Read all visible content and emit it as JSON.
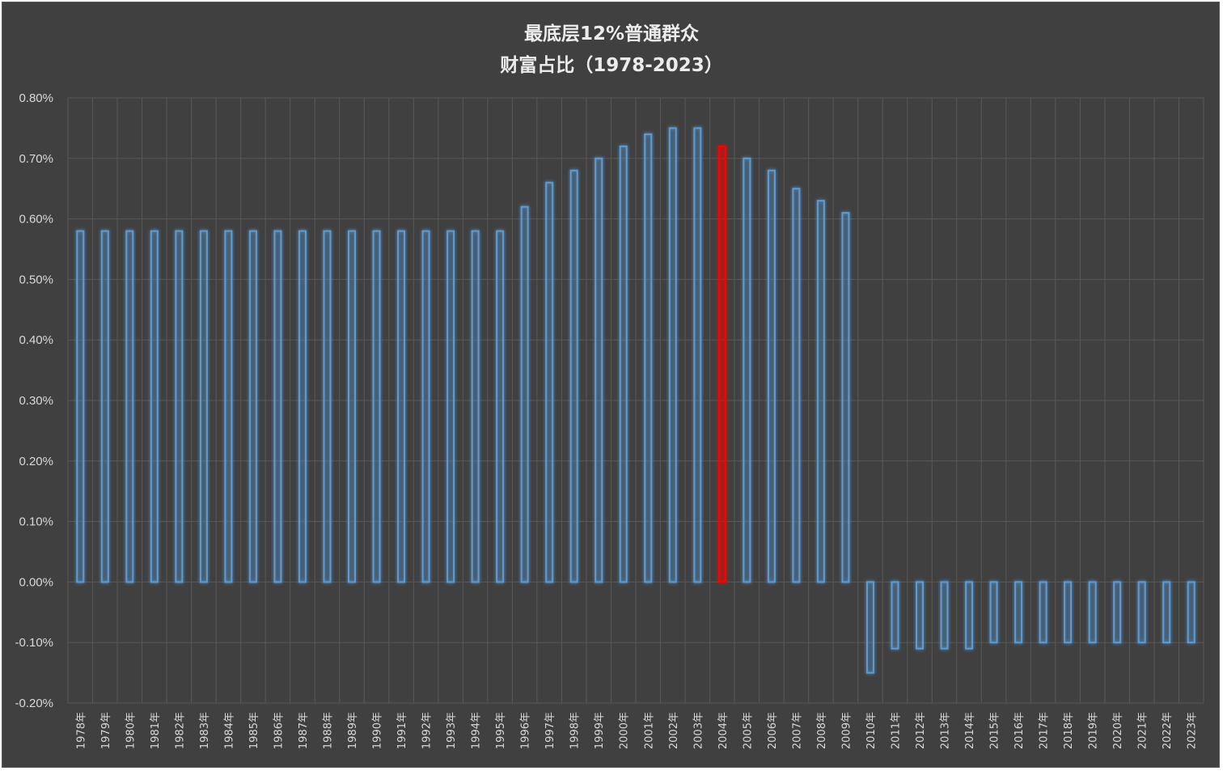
{
  "chart_data": {
    "type": "bar",
    "title": "最底层12%普通群众",
    "subtitle": "财富占比（1978-2023）",
    "categories": [
      "1978年",
      "1979年",
      "1980年",
      "1981年",
      "1982年",
      "1983年",
      "1984年",
      "1985年",
      "1986年",
      "1987年",
      "1988年",
      "1989年",
      "1990年",
      "1991年",
      "1992年",
      "1993年",
      "1994年",
      "1995年",
      "1996年",
      "1997年",
      "1998年",
      "1999年",
      "2000年",
      "2001年",
      "2002年",
      "2003年",
      "2004年",
      "2005年",
      "2006年",
      "2007年",
      "2008年",
      "2009年",
      "2010年",
      "2011年",
      "2012年",
      "2013年",
      "2014年",
      "2015年",
      "2016年",
      "2017年",
      "2018年",
      "2019年",
      "2020年",
      "2021年",
      "2022年",
      "2023年"
    ],
    "values": [
      0.58,
      0.58,
      0.58,
      0.58,
      0.58,
      0.58,
      0.58,
      0.58,
      0.58,
      0.58,
      0.58,
      0.58,
      0.58,
      0.58,
      0.58,
      0.58,
      0.58,
      0.58,
      0.62,
      0.66,
      0.68,
      0.7,
      0.72,
      0.74,
      0.75,
      0.75,
      0.72,
      0.7,
      0.68,
      0.65,
      0.63,
      0.61,
      -0.15,
      -0.11,
      -0.11,
      -0.11,
      -0.11,
      -0.1,
      -0.1,
      -0.1,
      -0.1,
      -0.1,
      -0.1,
      -0.1,
      -0.1,
      -0.1
    ],
    "unit": "%",
    "ylim": [
      -0.2,
      0.8
    ],
    "yticks": [
      "0.80%",
      "0.70%",
      "0.60%",
      "0.50%",
      "0.40%",
      "0.30%",
      "0.20%",
      "0.10%",
      "0.00%",
      "-0.10%",
      "-0.20%"
    ],
    "ytick_values": [
      0.8,
      0.7,
      0.6,
      0.5,
      0.4,
      0.3,
      0.2,
      0.1,
      0.0,
      -0.1,
      -0.2
    ],
    "grid": true,
    "highlight_category": "2004年",
    "colors": {
      "background": "#404040",
      "grid": "#595959",
      "bar_outline": "#5b9bd5",
      "bar_glow": "#2e75b6",
      "highlight": "#ff0000"
    }
  }
}
